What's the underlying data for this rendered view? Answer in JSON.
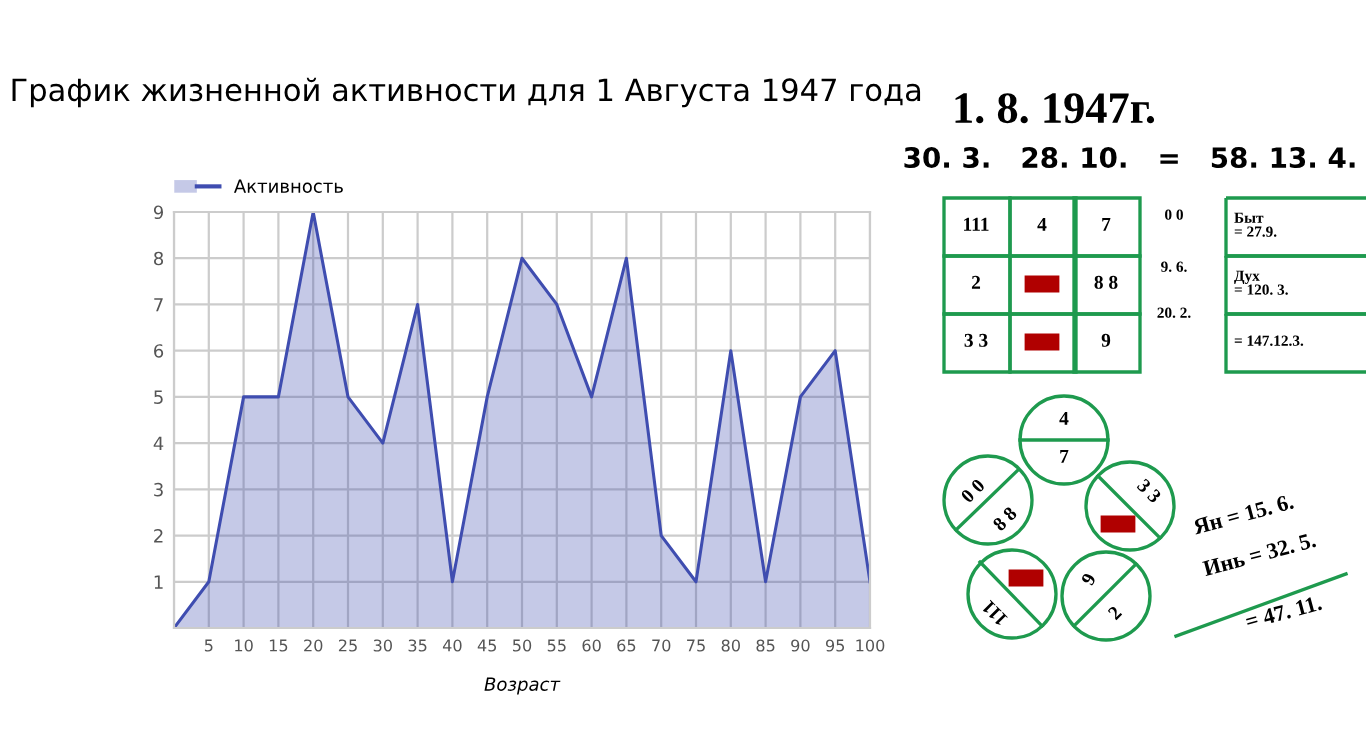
{
  "chart_data": [
    {
      "type": "area",
      "title": "График жизненной активности для 1 Августа 1947 года",
      "xlabel": "Возраст",
      "x": [
        0,
        5,
        10,
        15,
        20,
        25,
        30,
        35,
        40,
        45,
        50,
        55,
        60,
        65,
        70,
        75,
        80,
        85,
        90,
        95,
        100
      ],
      "series": [
        {
          "name": "Активность",
          "color": "#3f4db0",
          "values": [
            0,
            1,
            5,
            5,
            9,
            5,
            4,
            7,
            1,
            5,
            8,
            7,
            5,
            8,
            2,
            1,
            6,
            1,
            5,
            6,
            1
          ]
        }
      ],
      "xlim": [
        0,
        100
      ],
      "ylim": [
        0,
        9
      ],
      "xticks": [
        {
          "value": 0,
          "label": null
        },
        5,
        10,
        15,
        20,
        25,
        30,
        35,
        40,
        45,
        50,
        55,
        60,
        65,
        70,
        75,
        80,
        85,
        90,
        95,
        100
      ],
      "yticks": [
        1,
        2,
        3,
        4,
        5,
        6,
        7,
        8,
        9
      ],
      "grid": true,
      "legend": "top left"
    },
    {
      "type": "other",
      "title": "1. 8. 1947г.",
      "subtitle": "30. 3.   28. 10.   =   58. 13. 4.",
      "annotations": [
        "111",
        "4",
        "7",
        "2",
        "8 8",
        "3 3",
        "9",
        "0 0",
        "9. 6.",
        "20. 2.",
        "Быт\n= 27.9.",
        "Дух\n= 120. 3.",
        "= 147.12.3.",
        "4",
        "7",
        "0 0",
        "8 8",
        "3 3",
        "111",
        "9",
        "2",
        "Ян = 15. 6.",
        "Инь = 32. 5.",
        "= 47. 11."
      ]
    }
  ]
}
